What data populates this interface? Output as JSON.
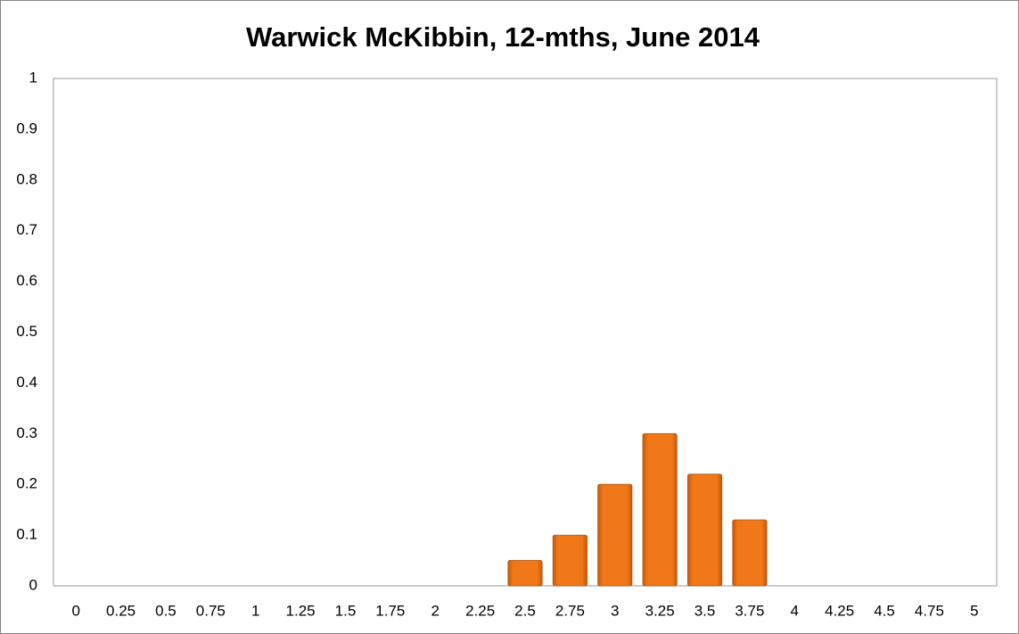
{
  "chart_data": {
    "type": "bar",
    "title": "Warwick McKibbin, 12-mths, June 2014",
    "categories": [
      "0",
      "0.25",
      "0.5",
      "0.75",
      "1",
      "1.25",
      "1.5",
      "1.75",
      "2",
      "2.25",
      "2.5",
      "2.75",
      "3",
      "3.25",
      "3.5",
      "3.75",
      "4",
      "4.25",
      "4.5",
      "4.75",
      "5"
    ],
    "values": [
      0,
      0,
      0,
      0,
      0,
      0,
      0,
      0,
      0,
      0,
      0.05,
      0.1,
      0.2,
      0.3,
      0.22,
      0.13,
      0,
      0,
      0,
      0,
      0
    ],
    "color": "#f07818",
    "ylim": [
      0,
      1
    ],
    "yticks": [
      0,
      0.1,
      0.2,
      0.3,
      0.4,
      0.5,
      0.6,
      0.7,
      0.8,
      0.9,
      1
    ],
    "grid": false
  }
}
